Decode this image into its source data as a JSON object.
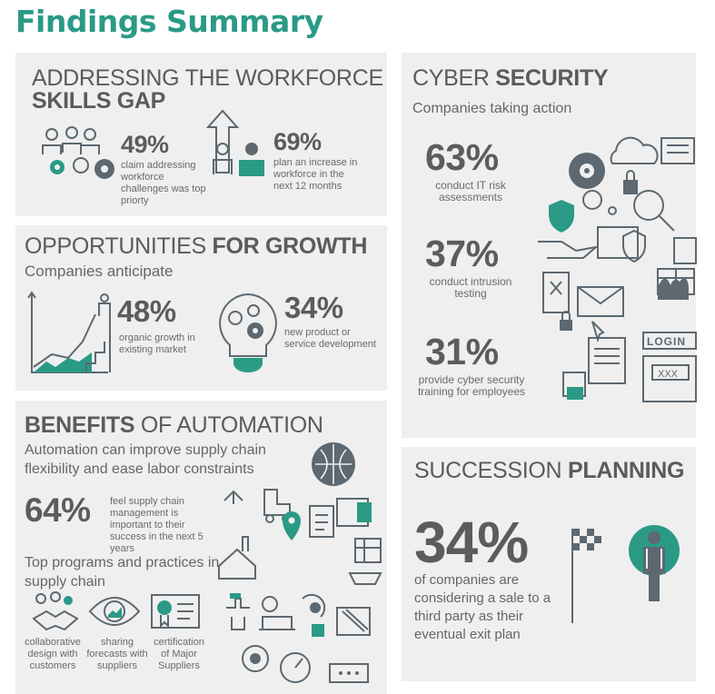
{
  "page_title": "Findings Summary",
  "workforce": {
    "heading_light": "ADDRESSING THE WORKFORCE",
    "heading_bold": "SKILLS GAP",
    "stat1": {
      "value": "49%",
      "caption": "claim addressing workforce challenges was top priorty"
    },
    "stat2": {
      "value": "69%",
      "caption": "plan an increase in workforce in the next 12 months"
    }
  },
  "growth": {
    "heading_light": "OPPORTUNITIES",
    "heading_bold": "FOR GROWTH",
    "subtitle": "Companies anticipate",
    "stat1": {
      "value": "48%",
      "caption": "organic growth in existing market"
    },
    "stat2": {
      "value": "34%",
      "caption": "new product or service development"
    }
  },
  "automation": {
    "heading_bold": "BENEFITS",
    "heading_light": "OF AUTOMATION",
    "subtitle": "Automation can improve supply chain flexibility and ease labor constraints",
    "stat": {
      "value": "64%",
      "caption": "feel supply chain management is important to their success in the next 5 years"
    },
    "programs_title": "Top programs and practices in supply chain",
    "programs": [
      {
        "label": "collaborative design with customers",
        "icon": "handshake-gears-icon"
      },
      {
        "label": "sharing forecasts with suppliers",
        "icon": "eye-chart-icon"
      },
      {
        "label": "certification of Major Suppliers",
        "icon": "certificate-icon"
      }
    ]
  },
  "cyber": {
    "heading_light": "CYBER",
    "heading_bold": "SECURITY",
    "subtitle": "Companies taking action",
    "stats": [
      {
        "value": "63%",
        "caption": "conduct IT risk assessments"
      },
      {
        "value": "37%",
        "caption": "conduct intrusion testing"
      },
      {
        "value": "31%",
        "caption": "provide cyber security training for employees"
      }
    ],
    "login_label": "LOGIN",
    "password_mask": "XXX"
  },
  "succession": {
    "heading_light": "SUCCESSION",
    "heading_bold": "PLANNING",
    "stat": {
      "value": "34%",
      "caption": "of companies are considering a sale to a third party as their eventual exit plan"
    }
  },
  "colors": {
    "accent": "#2a9a86",
    "panel_bg": "#efefef",
    "text": "#5b5b5b",
    "icon": "#5d6870"
  }
}
